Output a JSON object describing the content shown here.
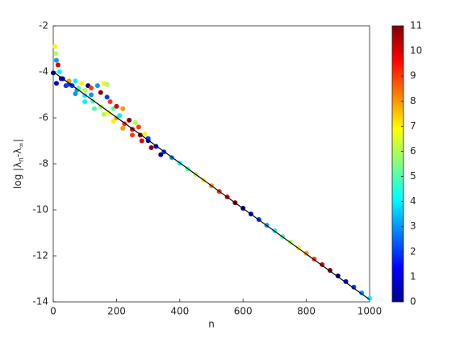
{
  "chart_data": {
    "type": "scatter",
    "xlabel": "n",
    "ylabel_parts": [
      "log |λ",
      "n",
      "-λ",
      "∞",
      "|"
    ],
    "xlim": [
      0,
      1000
    ],
    "xticks": [
      0,
      200,
      400,
      600,
      800,
      1000
    ],
    "ylim": [
      -14,
      -2
    ],
    "yticks": [
      -14,
      -12,
      -10,
      -8,
      -6,
      -4,
      -2
    ],
    "clim": [
      0,
      11
    ],
    "cticks": [
      0,
      1,
      2,
      3,
      4,
      5,
      6,
      7,
      8,
      9,
      10,
      11
    ],
    "colormap": "jet",
    "points": {
      "x": [
        0,
        25,
        50,
        75,
        100,
        125,
        150,
        175,
        200,
        225,
        250,
        275,
        300,
        325,
        350,
        375,
        400,
        425,
        450,
        475,
        500,
        525,
        550,
        575,
        600,
        625,
        650,
        675,
        700,
        725,
        750,
        775,
        800,
        825,
        850,
        875,
        900,
        925,
        950,
        975,
        1000,
        10,
        40,
        70,
        100,
        130,
        160,
        190,
        220,
        250,
        280,
        310,
        340,
        5,
        8,
        10,
        15,
        20,
        30,
        50,
        70,
        90,
        110,
        120,
        140,
        150,
        160,
        170,
        180,
        190,
        200,
        210,
        220,
        240,
        260,
        270,
        290,
        300,
        120,
        100,
        80,
        60,
        170
      ],
      "y": [
        -4.05,
        -4.3,
        -4.54,
        -4.79,
        -5.03,
        -5.28,
        -5.52,
        -5.77,
        -6.01,
        -6.26,
        -6.5,
        -6.75,
        -6.99,
        -7.24,
        -7.48,
        -7.73,
        -7.97,
        -8.22,
        -8.46,
        -8.71,
        -8.95,
        -9.2,
        -9.44,
        -9.69,
        -9.93,
        -10.18,
        -10.42,
        -10.67,
        -10.91,
        -11.16,
        -11.4,
        -11.65,
        -11.89,
        -12.14,
        -12.38,
        -12.63,
        -12.87,
        -13.12,
        -13.36,
        -13.61,
        -13.85,
        -4.5,
        -4.6,
        -4.95,
        -5.3,
        -5.6,
        -5.85,
        -6.15,
        -6.45,
        -6.75,
        -7.0,
        -7.3,
        -7.6,
        -2.9,
        -3.2,
        -3.5,
        -3.7,
        -4.0,
        -4.3,
        -4.4,
        -4.4,
        -4.5,
        -4.6,
        -4.7,
        -4.6,
        -4.9,
        -4.5,
        -5.1,
        -5.3,
        -5.6,
        -5.5,
        -5.9,
        -5.6,
        -6.1,
        -6.2,
        -6.4,
        -6.7,
        -6.9,
        -5.0,
        -4.8,
        -4.7,
        -4.6,
        -4.55
      ],
      "c": [
        0,
        1,
        2,
        3,
        4,
        5,
        6,
        7,
        8,
        9,
        10,
        11,
        0,
        1,
        2,
        3,
        4,
        5,
        6,
        7,
        8,
        9,
        10,
        11,
        0,
        1,
        2,
        3,
        4,
        5,
        6,
        7,
        8,
        9,
        10,
        11,
        0,
        1,
        2,
        3,
        4,
        1,
        2,
        3,
        4,
        5,
        6,
        7,
        8,
        9,
        10,
        11,
        0,
        7,
        6,
        3,
        10,
        4,
        1,
        8,
        4,
        7,
        0,
        9,
        3,
        11,
        7,
        2,
        9,
        5,
        10,
        4,
        8,
        11,
        6,
        9,
        7,
        2,
        3,
        6,
        5,
        2,
        6
      ]
    },
    "fit_line": {
      "x": [
        0,
        1000
      ],
      "y": [
        -4.0,
        -13.9
      ],
      "color": "#000000"
    }
  }
}
